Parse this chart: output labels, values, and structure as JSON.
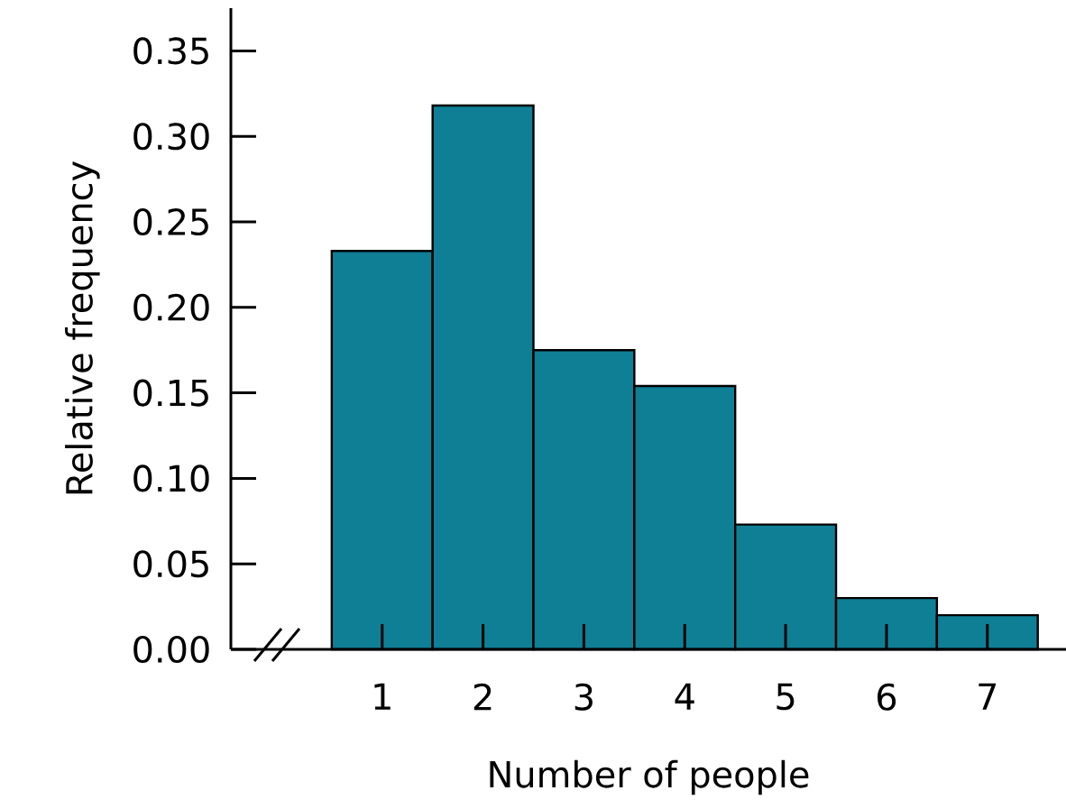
{
  "chart_data": {
    "type": "histogram",
    "xlabel": "Number of people",
    "ylabel": "Relative frequency",
    "bins": [
      0.5,
      1.5,
      2.5,
      3.5,
      4.5,
      5.5,
      6.5,
      7.5
    ],
    "values": [
      0.233,
      0.318,
      0.175,
      0.154,
      0.073,
      0.03,
      0.02
    ],
    "color": "#0f7f95",
    "xlim": [
      -0.5,
      7.78
    ],
    "xticks": [
      1,
      2,
      3,
      4,
      5,
      6,
      7
    ],
    "ylim": [
      0,
      0.375
    ],
    "yticks": [
      {
        "value": 0,
        "label": "0.00"
      },
      {
        "value": 0.05,
        "label": "0.05"
      },
      {
        "value": 0.1,
        "label": "0.10"
      },
      {
        "value": 0.15,
        "label": "0.15"
      },
      {
        "value": 0.2,
        "label": "0.20"
      },
      {
        "value": 0.25,
        "label": "0.25"
      },
      {
        "value": 0.3,
        "label": "0.30"
      },
      {
        "value": 0.35,
        "label": "0.35"
      }
    ],
    "grid": false
  }
}
